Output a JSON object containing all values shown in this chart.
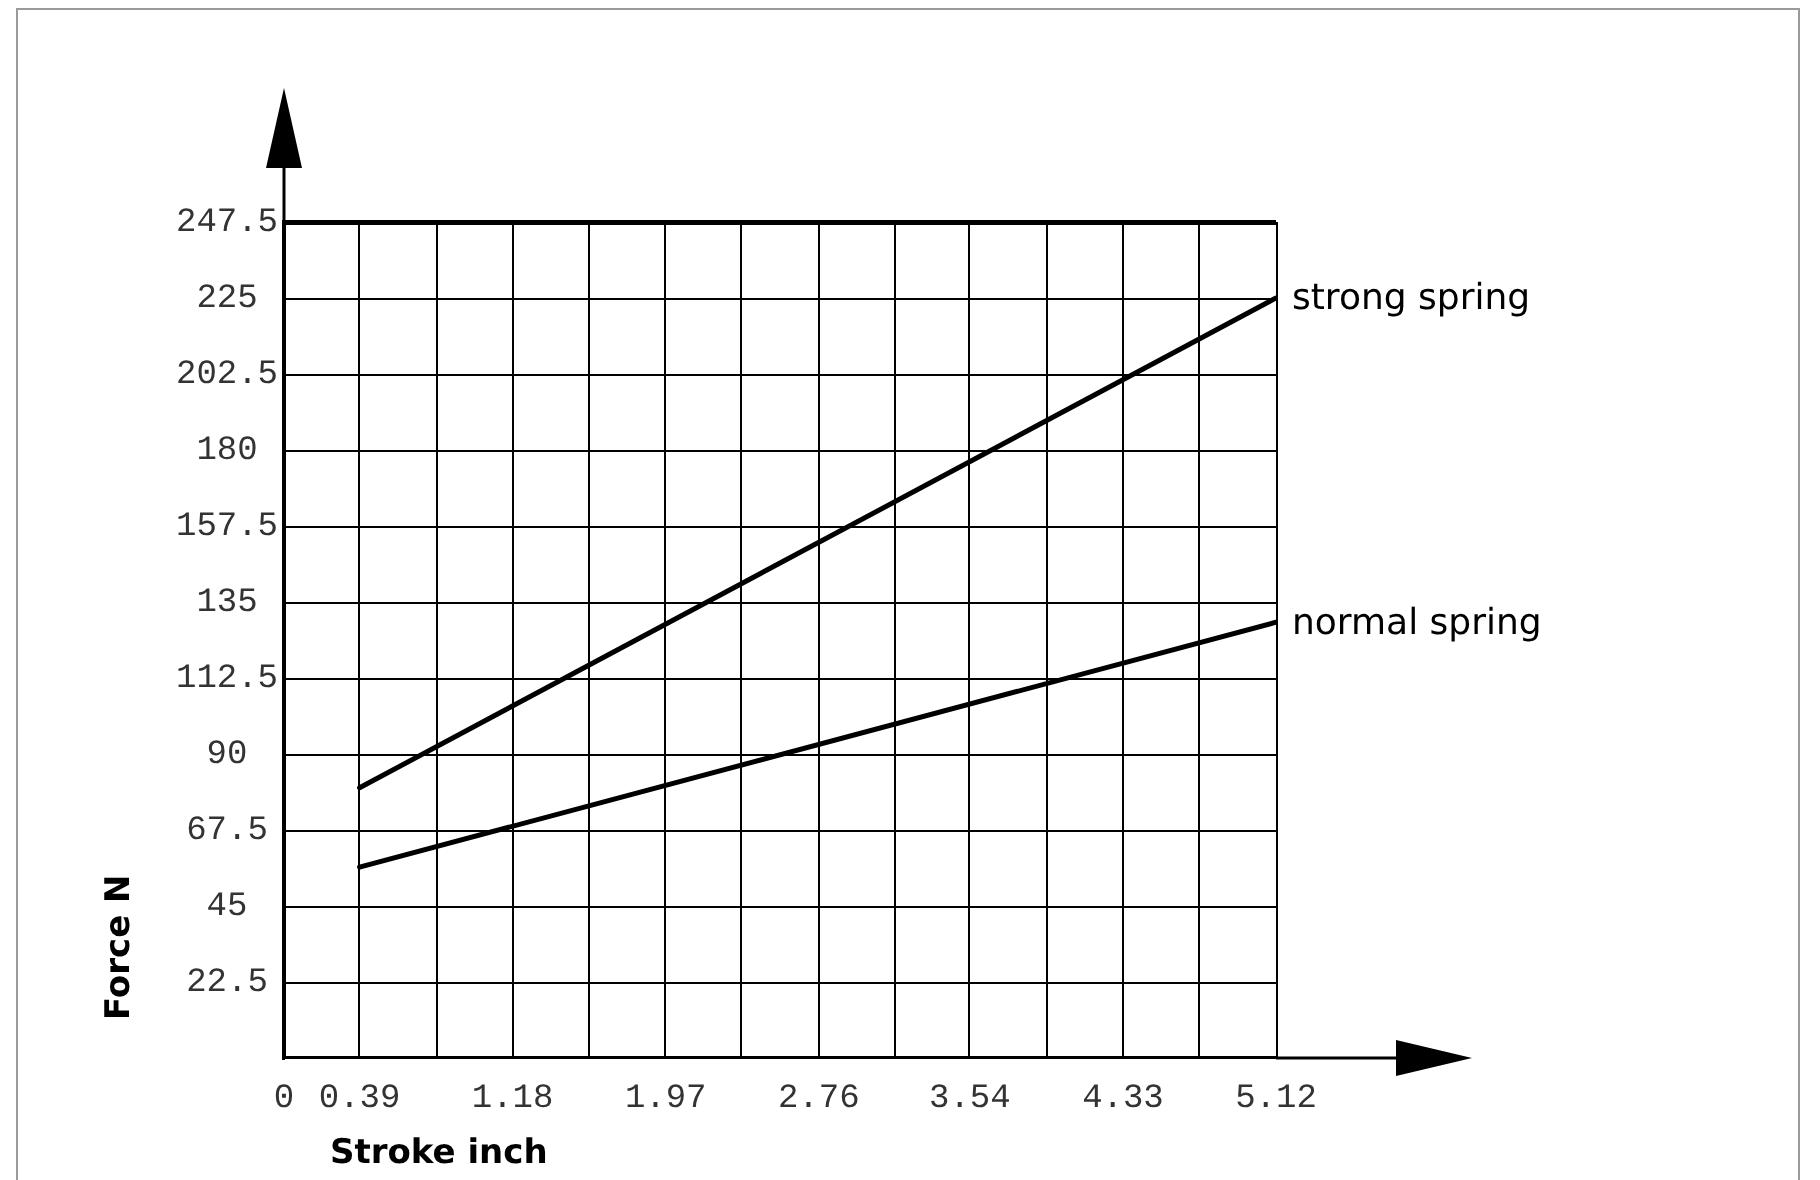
{
  "chart_data": {
    "type": "line",
    "xlabel": "Stroke inch",
    "ylabel": "Force N",
    "x": [
      0.39,
      5.12
    ],
    "series": [
      {
        "name": "strong spring",
        "color": "#000000",
        "values": [
          80,
          225
        ]
      },
      {
        "name": "normal spring",
        "color": "#000000",
        "values": [
          56.5,
          129
        ]
      }
    ],
    "xlim": [
      0,
      5.12
    ],
    "xticks": [
      0,
      0.39,
      {
        "value": 0.79,
        "label": null
      },
      1.18,
      {
        "value": 1.57,
        "label": null
      },
      1.97,
      {
        "value": 2.36,
        "label": null
      },
      2.76,
      {
        "value": 3.15,
        "label": null
      },
      3.54,
      {
        "value": 3.94,
        "label": null
      },
      4.33,
      {
        "value": 4.72,
        "label": null
      },
      5.12
    ],
    "ylim": [
      0,
      247.5
    ],
    "yticks": [
      22.5,
      45,
      67.5,
      90,
      112.5,
      135,
      157.5,
      180,
      202.5,
      225,
      247.5
    ],
    "grid": true,
    "marker": "none",
    "line_style": "solid"
  }
}
